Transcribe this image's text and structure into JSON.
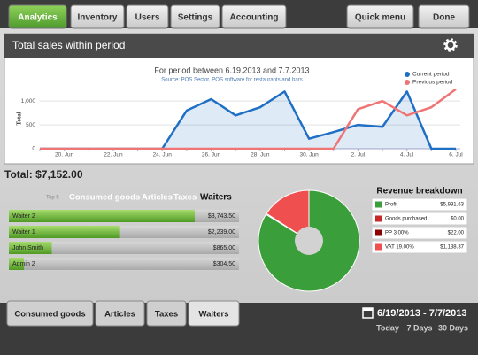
{
  "tabs": [
    "Analytics",
    "Inventory",
    "Users",
    "Settings",
    "Accounting"
  ],
  "menu": [
    "Quick menu",
    "Done"
  ],
  "panel_title": "Total sales within period",
  "total": "Total: $7,152.00",
  "top5_label": "Top 5",
  "top5_tabs": [
    "Consumed goods",
    "Articles",
    "Taxes",
    "Waiters"
  ],
  "bottom_tabs": [
    "Consumed goods",
    "Articles",
    "Taxes",
    "Waiters"
  ],
  "date_range": "6/19/2013 - 7/7/2013",
  "quick_ranges": [
    "Today",
    "7 Days",
    "30 Days"
  ],
  "chart_data": [
    {
      "type": "line",
      "title": "For period between 6.19.2013 and 7.7.2013",
      "subtitle": "Source: POS Sector, POS software for restaurants and bars",
      "y_label": "Total",
      "categories": [
        null,
        "20. Jun",
        null,
        "22. Jun",
        null,
        "24. Jun",
        null,
        "26. Jun",
        null,
        "28. Jun",
        null,
        "30. Jun",
        null,
        "2. Jul",
        null,
        "4. Jul",
        null,
        "6. Jul"
      ],
      "series": [
        {
          "name": "Current period",
          "color": "#1f6fc5",
          "area": true,
          "values": [
            0,
            0,
            0,
            0,
            0,
            0,
            800,
            1040,
            700,
            870,
            1200,
            210,
            350,
            500,
            460,
            1200,
            0,
            0
          ]
        },
        {
          "name": "Previous period",
          "color": "#f07474",
          "values": [
            0,
            0,
            0,
            0,
            0,
            0,
            0,
            0,
            0,
            0,
            0,
            0,
            0,
            830,
            1000,
            700,
            870,
            1250
          ]
        }
      ],
      "ylim": [
        0,
        1300
      ],
      "yticks": [
        0,
        500,
        {
          "value": 1000,
          "label": "1,000"
        }
      ],
      "grid": true,
      "legend": "top-right"
    },
    {
      "type": "hbar",
      "categories": [
        "Waiter 2",
        "Waiter 1",
        "John Smith",
        "Admin 2"
      ],
      "values": [
        3743.5,
        2239,
        865,
        304.5
      ],
      "value_labels": [
        "$3,743.50",
        "$2,239.00",
        "$865.00",
        "$304.50"
      ],
      "color": "#6ab82e"
    },
    {
      "type": "pie",
      "title": "Revenue breakdown",
      "categories": [
        "Profit",
        "Goods purchased",
        "PP 3.00%",
        "VAT 19.00%"
      ],
      "values": [
        5991.63,
        0,
        22,
        1138.37
      ],
      "value_labels": [
        "$5,991.63",
        "$0.00",
        "$22.00",
        "$1,138.37"
      ],
      "colors": [
        "#3a9e3a",
        "#c62828",
        "#8b0000",
        "#ef4f4f"
      ]
    }
  ]
}
